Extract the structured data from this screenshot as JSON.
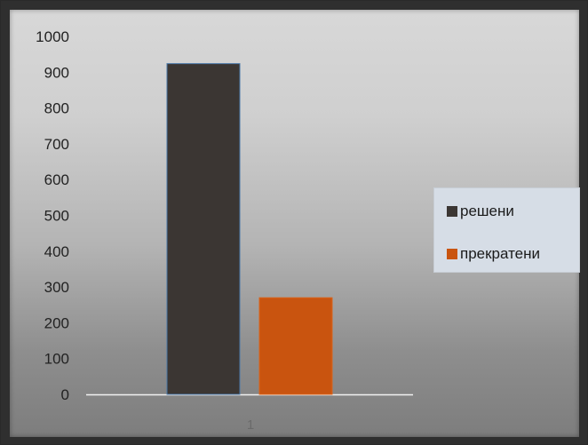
{
  "chart_data": {
    "type": "bar",
    "categories": [
      "1"
    ],
    "series": [
      {
        "name": "решени",
        "values": [
          924
        ],
        "color": "#3b3633"
      },
      {
        "name": "прекратени",
        "values": [
          270
        ],
        "color": "#c9540f"
      }
    ],
    "ylim": [
      0,
      1000
    ],
    "yticks": [
      "0",
      "100",
      "200",
      "300",
      "400",
      "500",
      "600",
      "700",
      "800",
      "900",
      "1000"
    ],
    "grid": false,
    "legend_position": "right"
  }
}
